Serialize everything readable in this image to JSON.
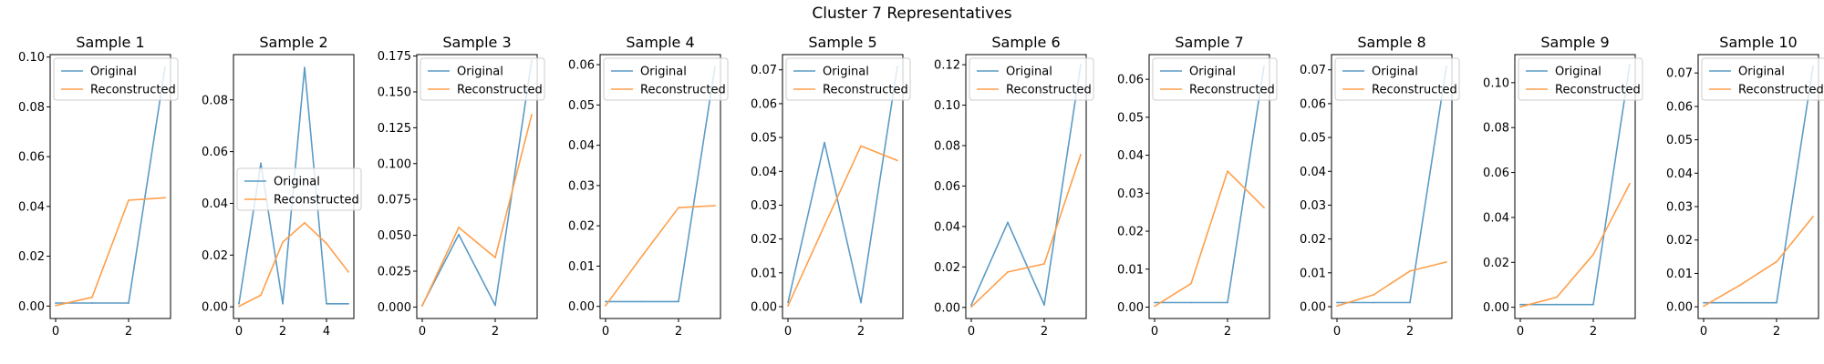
{
  "suptitle": "Cluster 7 Representatives",
  "colors": {
    "original": "#5b9bc6",
    "reconstructed": "#ff9f4a"
  },
  "chart_data": [
    {
      "type": "line",
      "title": "Sample 1",
      "xlim": [
        -0.15,
        3.15
      ],
      "ylim": [
        -0.005,
        0.101
      ],
      "xticks": [
        0,
        2
      ],
      "xtick_labels": [
        "0",
        "2"
      ],
      "yticks": [
        0,
        0.02,
        0.04,
        0.06,
        0.08,
        0.1
      ],
      "ytick_labels": [
        "0.00",
        "0.02",
        "0.04",
        "0.06",
        "0.08",
        "0.10"
      ],
      "legend": "upper left",
      "series": [
        {
          "name": "Original",
          "x": [
            0,
            1,
            2,
            3
          ],
          "values": [
            0.0012,
            0.0012,
            0.0012,
            0.096
          ]
        },
        {
          "name": "Reconstructed",
          "x": [
            0,
            1,
            2,
            3
          ],
          "values": [
            0.0002,
            0.0035,
            0.0425,
            0.0435
          ]
        }
      ]
    },
    {
      "type": "line",
      "title": "Sample 2",
      "xlim": [
        -0.25,
        5.25
      ],
      "ylim": [
        -0.0045,
        0.0975
      ],
      "xticks": [
        0,
        2,
        4
      ],
      "xtick_labels": [
        "0",
        "2",
        "4"
      ],
      "yticks": [
        0,
        0.02,
        0.04,
        0.06,
        0.08
      ],
      "ytick_labels": [
        "0.00",
        "0.02",
        "0.04",
        "0.06",
        "0.08"
      ],
      "legend": "center left",
      "series": [
        {
          "name": "Original",
          "x": [
            0,
            1,
            2,
            3,
            4,
            5
          ],
          "values": [
            0.0012,
            0.0555,
            0.0012,
            0.0925,
            0.0012,
            0.0012
          ]
        },
        {
          "name": "Reconstructed",
          "x": [
            0,
            1,
            2,
            3,
            4,
            5
          ],
          "values": [
            0.0002,
            0.0045,
            0.025,
            0.0325,
            0.0245,
            0.0135
          ]
        }
      ]
    },
    {
      "type": "line",
      "title": "Sample 3",
      "xlim": [
        -0.15,
        3.15
      ],
      "ylim": [
        -0.008,
        0.176
      ],
      "xticks": [
        0,
        2
      ],
      "xtick_labels": [
        "0",
        "2"
      ],
      "yticks": [
        0,
        0.025,
        0.05,
        0.075,
        0.1,
        0.125,
        0.15,
        0.175
      ],
      "ytick_labels": [
        "0.000",
        "0.025",
        "0.050",
        "0.075",
        "0.100",
        "0.125",
        "0.150",
        "0.175"
      ],
      "legend": "upper left",
      "series": [
        {
          "name": "Original",
          "x": [
            0,
            1,
            2,
            3
          ],
          "values": [
            0.0012,
            0.0505,
            0.0012,
            0.172
          ]
        },
        {
          "name": "Reconstructed",
          "x": [
            0,
            1,
            2,
            3
          ],
          "values": [
            0.0008,
            0.0555,
            0.0345,
            0.134
          ]
        }
      ]
    },
    {
      "type": "line",
      "title": "Sample 4",
      "xlim": [
        -0.15,
        3.15
      ],
      "ylim": [
        -0.003,
        0.0625
      ],
      "xticks": [
        0,
        2
      ],
      "xtick_labels": [
        "0",
        "2"
      ],
      "yticks": [
        0,
        0.01,
        0.02,
        0.03,
        0.04,
        0.05,
        0.06
      ],
      "ytick_labels": [
        "0.00",
        "0.01",
        "0.02",
        "0.03",
        "0.04",
        "0.05",
        "0.06"
      ],
      "legend": "upper left",
      "series": [
        {
          "name": "Original",
          "x": [
            0,
            1,
            2,
            3
          ],
          "values": [
            0.0012,
            0.0012,
            0.0012,
            0.0595
          ]
        },
        {
          "name": "Reconstructed",
          "x": [
            0,
            1,
            2,
            3
          ],
          "values": [
            0.0002,
            0.0125,
            0.0245,
            0.025
          ]
        }
      ]
    },
    {
      "type": "line",
      "title": "Sample 5",
      "xlim": [
        -0.15,
        3.15
      ],
      "ylim": [
        -0.0035,
        0.0745
      ],
      "xticks": [
        0,
        2
      ],
      "xtick_labels": [
        "0",
        "2"
      ],
      "yticks": [
        0,
        0.01,
        0.02,
        0.03,
        0.04,
        0.05,
        0.06,
        0.07
      ],
      "ytick_labels": [
        "0.00",
        "0.01",
        "0.02",
        "0.03",
        "0.04",
        "0.05",
        "0.06",
        "0.07"
      ],
      "legend": "upper left",
      "series": [
        {
          "name": "Original",
          "x": [
            0,
            1,
            2,
            3
          ],
          "values": [
            0.0012,
            0.0485,
            0.0012,
            0.071
          ]
        },
        {
          "name": "Reconstructed",
          "x": [
            0,
            1,
            2,
            3
          ],
          "values": [
            0.0002,
            0.024,
            0.0475,
            0.0432
          ]
        }
      ]
    },
    {
      "type": "line",
      "title": "Sample 6",
      "xlim": [
        -0.15,
        3.15
      ],
      "ylim": [
        -0.0055,
        0.125
      ],
      "xticks": [
        0,
        2
      ],
      "xtick_labels": [
        "0",
        "2"
      ],
      "yticks": [
        0,
        0.02,
        0.04,
        0.06,
        0.08,
        0.1,
        0.12
      ],
      "ytick_labels": [
        "0.00",
        "0.02",
        "0.04",
        "0.06",
        "0.08",
        "0.10",
        "0.12"
      ],
      "legend": "upper left",
      "series": [
        {
          "name": "Original",
          "x": [
            0,
            1,
            2,
            3
          ],
          "values": [
            0.0012,
            0.042,
            0.0012,
            0.12
          ]
        },
        {
          "name": "Reconstructed",
          "x": [
            0,
            1,
            2,
            3
          ],
          "values": [
            0.0002,
            0.0175,
            0.0215,
            0.0755
          ]
        }
      ]
    },
    {
      "type": "line",
      "title": "Sample 7",
      "xlim": [
        -0.15,
        3.15
      ],
      "ylim": [
        -0.003,
        0.0665
      ],
      "xticks": [
        0,
        2
      ],
      "xtick_labels": [
        "0",
        "2"
      ],
      "yticks": [
        0,
        0.01,
        0.02,
        0.03,
        0.04,
        0.05,
        0.06
      ],
      "ytick_labels": [
        "0.00",
        "0.01",
        "0.02",
        "0.03",
        "0.04",
        "0.05",
        "0.06"
      ],
      "legend": "upper left",
      "series": [
        {
          "name": "Original",
          "x": [
            0,
            1,
            2,
            3
          ],
          "values": [
            0.0012,
            0.0012,
            0.0012,
            0.0635
          ]
        },
        {
          "name": "Reconstructed",
          "x": [
            0,
            1,
            2,
            3
          ],
          "values": [
            0.0002,
            0.0062,
            0.0358,
            0.0262
          ]
        }
      ]
    },
    {
      "type": "line",
      "title": "Sample 8",
      "xlim": [
        -0.15,
        3.15
      ],
      "ylim": [
        -0.0035,
        0.0745
      ],
      "xticks": [
        0,
        2
      ],
      "xtick_labels": [
        "0",
        "2"
      ],
      "yticks": [
        0,
        0.01,
        0.02,
        0.03,
        0.04,
        0.05,
        0.06,
        0.07
      ],
      "ytick_labels": [
        "0.00",
        "0.01",
        "0.02",
        "0.03",
        "0.04",
        "0.05",
        "0.06",
        "0.07"
      ],
      "legend": "upper left",
      "series": [
        {
          "name": "Original",
          "x": [
            0,
            1,
            2,
            3
          ],
          "values": [
            0.0012,
            0.0012,
            0.0012,
            0.071
          ]
        },
        {
          "name": "Reconstructed",
          "x": [
            0,
            1,
            2,
            3
          ],
          "values": [
            0.0002,
            0.0035,
            0.0105,
            0.0132
          ]
        }
      ]
    },
    {
      "type": "line",
      "title": "Sample 9",
      "xlim": [
        -0.15,
        3.15
      ],
      "ylim": [
        -0.005,
        0.1125
      ],
      "xticks": [
        0,
        2
      ],
      "xtick_labels": [
        "0",
        "2"
      ],
      "yticks": [
        0,
        0.02,
        0.04,
        0.06,
        0.08,
        0.1
      ],
      "ytick_labels": [
        "0.00",
        "0.02",
        "0.04",
        "0.06",
        "0.08",
        "0.10"
      ],
      "legend": "upper left",
      "series": [
        {
          "name": "Original",
          "x": [
            0,
            1,
            2,
            3
          ],
          "values": [
            0.0012,
            0.0012,
            0.0012,
            0.108
          ]
        },
        {
          "name": "Reconstructed",
          "x": [
            0,
            1,
            2,
            3
          ],
          "values": [
            0.0002,
            0.0045,
            0.0235,
            0.055
          ]
        }
      ]
    },
    {
      "type": "line",
      "title": "Sample 10",
      "xlim": [
        -0.15,
        3.15
      ],
      "ylim": [
        -0.0035,
        0.0755
      ],
      "xticks": [
        0,
        2
      ],
      "xtick_labels": [
        "0",
        "2"
      ],
      "yticks": [
        0,
        0.01,
        0.02,
        0.03,
        0.04,
        0.05,
        0.06,
        0.07
      ],
      "ytick_labels": [
        "0.00",
        "0.01",
        "0.02",
        "0.03",
        "0.04",
        "0.05",
        "0.06",
        "0.07"
      ],
      "legend": "upper left",
      "series": [
        {
          "name": "Original",
          "x": [
            0,
            1,
            2,
            3
          ],
          "values": [
            0.0012,
            0.0012,
            0.0012,
            0.072
          ]
        },
        {
          "name": "Reconstructed",
          "x": [
            0,
            1,
            2,
            3
          ],
          "values": [
            0.0002,
            0.0065,
            0.0135,
            0.027
          ]
        }
      ]
    }
  ]
}
